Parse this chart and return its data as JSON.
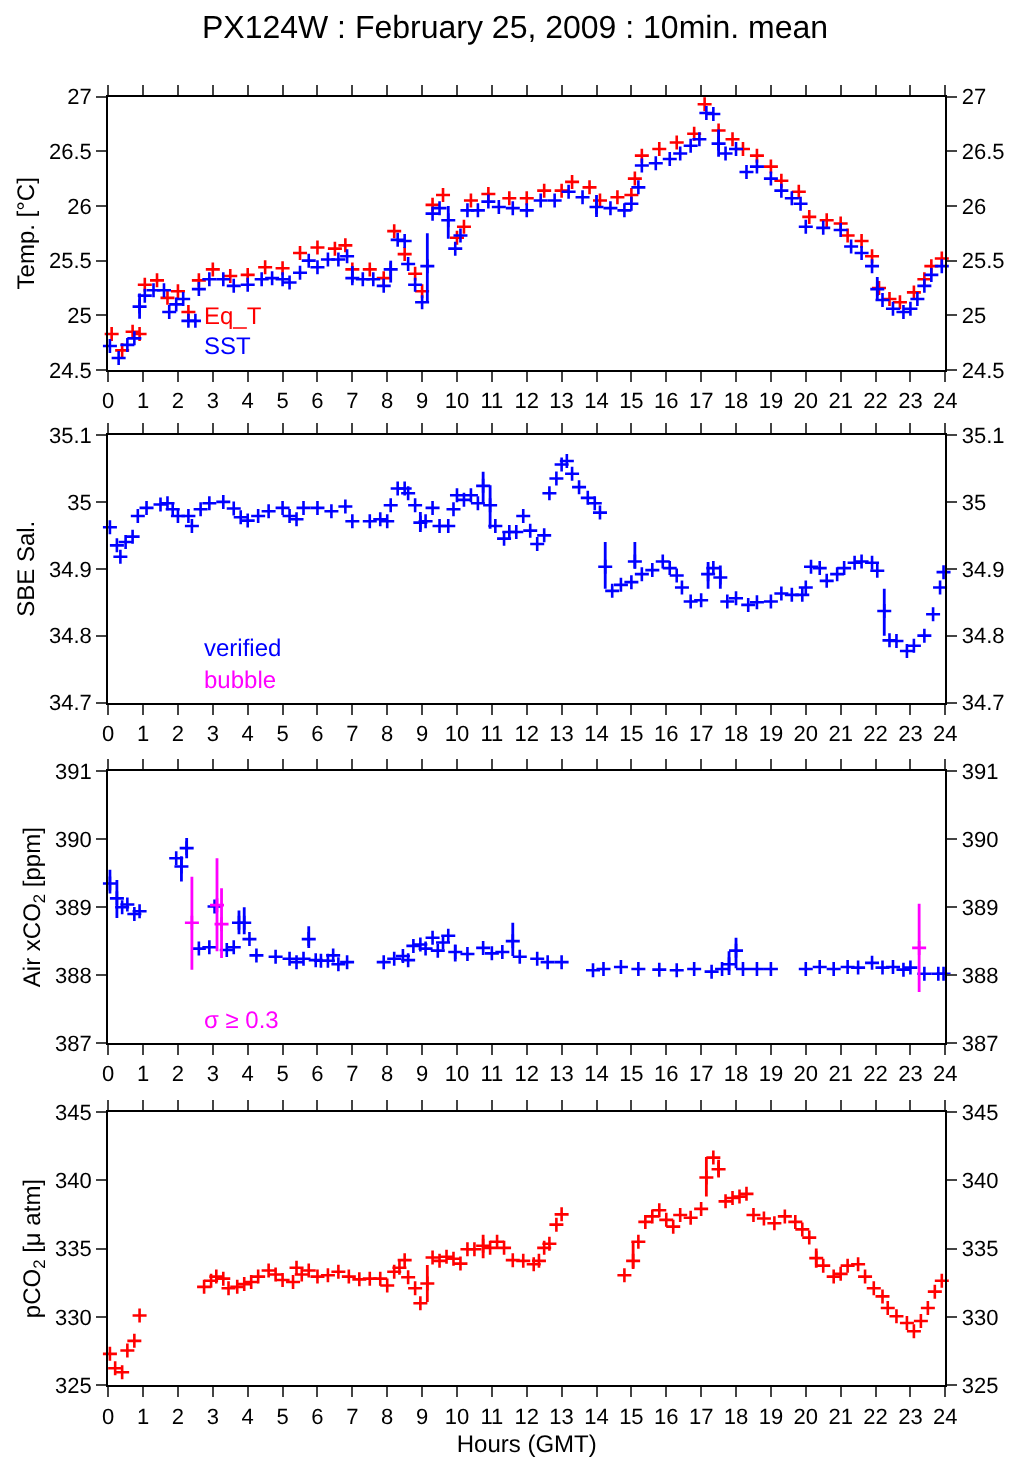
{
  "chart_data": [
    {
      "type": "scatter",
      "title": "PX124W : February 25, 2009 : 10min. mean",
      "ylabel": "Temp. [°C]",
      "marker": "cross",
      "legend": "bottom left",
      "xlim": [
        0,
        24
      ],
      "xticks": [
        0,
        1,
        2,
        3,
        4,
        5,
        6,
        7,
        8,
        9,
        10,
        11,
        12,
        13,
        14,
        15,
        16,
        17,
        18,
        19,
        20,
        21,
        22,
        23,
        24
      ],
      "ylim": [
        24.5,
        27
      ],
      "yticks": [
        24.5,
        25,
        25.5,
        26,
        26.5,
        27
      ],
      "y2lim": [
        24.5,
        27
      ],
      "y2ticks": [
        24.5,
        25,
        25.5,
        26,
        26.5,
        27
      ],
      "series": [
        {
          "name": "Eq_T",
          "color": "#ff0000",
          "x": [
            0.1,
            0.4,
            0.7,
            0.9,
            1.05,
            1.4,
            1.7,
            2.0,
            2.3,
            2.6,
            3.0,
            3.5,
            4.0,
            4.5,
            5.0,
            5.5,
            6.0,
            6.5,
            6.8,
            7.0,
            7.5,
            7.9,
            8.2,
            8.5,
            8.8,
            9.0,
            9.3,
            9.6,
            10.0,
            10.2,
            10.4,
            10.9,
            11.5,
            12.0,
            12.5,
            13.0,
            13.3,
            13.8,
            14.1,
            14.6,
            15.0,
            15.1,
            15.3,
            15.8,
            16.3,
            16.8,
            17.1,
            17.5,
            17.9,
            18.2,
            18.6,
            19.0,
            19.3,
            19.8,
            20.1,
            20.6,
            21.0,
            21.2,
            21.6,
            21.9,
            22.1,
            22.4,
            22.7,
            23.1,
            23.4,
            23.6,
            23.9
          ],
          "values": [
            24.83,
            24.68,
            24.85,
            24.83,
            25.28,
            25.32,
            25.16,
            25.22,
            25.03,
            25.32,
            25.42,
            25.36,
            25.37,
            25.44,
            25.43,
            25.57,
            25.62,
            25.61,
            25.64,
            25.42,
            25.42,
            25.34,
            25.77,
            25.56,
            25.38,
            25.22,
            26.01,
            26.1,
            25.71,
            25.81,
            26.05,
            26.11,
            26.07,
            26.07,
            26.14,
            26.14,
            26.22,
            26.17,
            26.05,
            26.08,
            26.1,
            26.25,
            26.46,
            26.52,
            26.58,
            26.66,
            26.93,
            26.69,
            26.61,
            26.52,
            26.46,
            26.36,
            26.23,
            26.13,
            25.9,
            25.87,
            25.84,
            25.73,
            25.68,
            25.54,
            25.25,
            25.15,
            25.12,
            25.21,
            25.33,
            25.45,
            25.52
          ]
        },
        {
          "name": "SST",
          "color": "#0000ff",
          "x": [
            0.05,
            0.3,
            0.55,
            0.75,
            0.9,
            1.05,
            1.3,
            1.6,
            1.75,
            1.95,
            2.15,
            2.3,
            2.5,
            2.6,
            2.9,
            3.3,
            3.6,
            4.0,
            4.4,
            4.7,
            5.0,
            5.2,
            5.5,
            5.75,
            6.0,
            6.3,
            6.6,
            6.85,
            7.0,
            7.3,
            7.6,
            7.9,
            8.1,
            8.3,
            8.5,
            8.6,
            8.8,
            9.0,
            9.15,
            9.3,
            9.5,
            9.75,
            9.95,
            10.1,
            10.3,
            10.6,
            10.9,
            11.2,
            11.6,
            12.0,
            12.4,
            12.8,
            13.2,
            13.6,
            14.0,
            14.4,
            14.8,
            15.0,
            15.2,
            15.3,
            15.7,
            16.1,
            16.4,
            16.7,
            16.95,
            17.15,
            17.35,
            17.5,
            17.7,
            18.0,
            18.3,
            18.6,
            19.0,
            19.3,
            19.6,
            19.85,
            20.0,
            20.5,
            21.0,
            21.3,
            21.6,
            21.9,
            22.05,
            22.2,
            22.5,
            22.8,
            23.0,
            23.2,
            23.4,
            23.6,
            23.9
          ],
          "values": [
            24.72,
            24.61,
            24.73,
            24.79,
            25.08,
            25.18,
            25.23,
            25.23,
            25.03,
            25.1,
            25.15,
            24.95,
            24.95,
            25.24,
            25.33,
            25.33,
            25.27,
            25.28,
            25.33,
            25.34,
            25.33,
            25.3,
            25.39,
            25.5,
            25.44,
            25.51,
            25.51,
            25.54,
            25.34,
            25.33,
            25.33,
            25.27,
            25.42,
            25.69,
            25.68,
            25.47,
            25.28,
            25.12,
            25.45,
            25.93,
            25.98,
            25.87,
            25.61,
            25.73,
            25.96,
            25.96,
            26.04,
            25.99,
            25.98,
            25.96,
            26.05,
            26.05,
            26.13,
            26.08,
            25.99,
            25.98,
            25.96,
            26.02,
            26.17,
            26.37,
            26.39,
            26.43,
            26.48,
            26.55,
            26.61,
            26.85,
            26.84,
            26.57,
            26.48,
            26.52,
            26.31,
            26.36,
            26.25,
            26.14,
            26.07,
            26.02,
            25.81,
            25.8,
            25.78,
            25.63,
            25.57,
            25.45,
            25.24,
            25.14,
            25.06,
            25.03,
            25.06,
            25.15,
            25.27,
            25.37,
            25.45
          ],
          "errors": [
            null,
            null,
            null,
            null,
            [
              24.97,
              25.2
            ],
            null,
            null,
            null,
            null,
            null,
            null,
            null,
            null,
            null,
            null,
            null,
            null,
            null,
            null,
            null,
            null,
            null,
            null,
            null,
            null,
            null,
            null,
            null,
            [
              25.3,
              25.45
            ],
            null,
            null,
            null,
            [
              25.3,
              25.5
            ],
            null,
            null,
            null,
            null,
            null,
            [
              25.12,
              25.75
            ],
            null,
            null,
            [
              25.7,
              26.0
            ],
            null,
            null,
            null,
            null,
            null,
            null,
            null,
            null,
            null,
            null,
            null,
            null,
            [
              25.9,
              26.1
            ],
            null,
            null,
            null,
            null,
            null,
            null,
            null,
            null,
            null,
            null,
            null,
            null,
            [
              26.45,
              26.7
            ],
            null,
            null,
            null,
            null,
            null,
            null,
            null,
            null,
            null,
            null,
            null,
            null,
            null,
            null,
            [
              25.15,
              25.35
            ],
            null,
            null,
            null,
            null,
            null,
            null,
            null,
            null
          ]
        }
      ]
    },
    {
      "type": "scatter",
      "ylabel": "SBE Sal.",
      "marker": "cross",
      "legend": "bottom left",
      "xlim": [
        0,
        24
      ],
      "xticks": [
        0,
        1,
        2,
        3,
        4,
        5,
        6,
        7,
        8,
        9,
        10,
        11,
        12,
        13,
        14,
        15,
        16,
        17,
        18,
        19,
        20,
        21,
        22,
        23,
        24
      ],
      "ylim": [
        34.7,
        35.1
      ],
      "yticks": [
        34.7,
        34.8,
        34.9,
        35,
        35.1
      ],
      "y2lim": [
        34.7,
        35.1
      ],
      "y2ticks": [
        34.7,
        34.8,
        34.9,
        35,
        35.1
      ],
      "series": [
        {
          "name": "verified",
          "color": "#0000ff",
          "x": [
            0.05,
            0.25,
            0.35,
            0.5,
            0.7,
            0.85,
            1.1,
            1.5,
            1.7,
            1.85,
            2.0,
            2.3,
            2.4,
            2.65,
            2.9,
            3.3,
            3.6,
            3.8,
            4.0,
            4.3,
            4.6,
            5.0,
            5.2,
            5.4,
            5.6,
            6.0,
            6.4,
            6.8,
            7.0,
            7.5,
            7.8,
            8.0,
            8.1,
            8.3,
            8.5,
            8.6,
            8.8,
            8.95,
            9.1,
            9.3,
            9.5,
            9.75,
            9.9,
            10.0,
            10.2,
            10.4,
            10.6,
            10.75,
            10.95,
            11.1,
            11.35,
            11.5,
            11.7,
            11.9,
            12.1,
            12.3,
            12.5,
            12.65,
            12.85,
            13.0,
            13.15,
            13.3,
            13.5,
            13.75,
            13.95,
            14.1,
            14.25,
            14.45,
            14.7,
            15.0,
            15.1,
            15.3,
            15.6,
            15.9,
            16.1,
            16.3,
            16.45,
            16.7,
            17.0,
            17.2,
            17.35,
            17.55,
            17.75,
            18.0,
            18.35,
            18.6,
            19.0,
            19.3,
            19.6,
            19.9,
            20.0,
            20.15,
            20.4,
            20.6,
            20.9,
            21.1,
            21.4,
            21.6,
            21.9,
            22.05,
            22.25,
            22.4,
            22.6,
            22.9,
            23.1,
            23.4,
            23.65,
            23.85,
            23.95
          ],
          "values": [
            34.962,
            34.935,
            34.918,
            34.94,
            34.948,
            34.979,
            34.991,
            34.996,
            34.998,
            34.989,
            34.979,
            34.979,
            34.964,
            34.989,
            34.998,
            35.0,
            34.99,
            34.977,
            34.972,
            34.979,
            34.986,
            34.991,
            34.979,
            34.974,
            34.991,
            34.991,
            34.986,
            34.993,
            34.971,
            34.971,
            34.974,
            34.971,
            34.995,
            35.02,
            35.02,
            35.013,
            34.995,
            34.969,
            34.971,
            34.991,
            34.964,
            34.964,
            34.989,
            35.01,
            35.003,
            35.01,
            34.998,
            35.024,
            34.995,
            34.964,
            34.945,
            34.955,
            34.955,
            34.979,
            34.957,
            34.937,
            34.95,
            35.013,
            35.035,
            35.056,
            35.061,
            35.042,
            35.022,
            35.006,
            34.998,
            34.984,
            34.903,
            34.867,
            34.876,
            34.88,
            34.911,
            34.892,
            34.898,
            34.911,
            34.901,
            34.89,
            34.872,
            34.851,
            34.853,
            34.892,
            34.901,
            34.887,
            34.851,
            34.856,
            34.846,
            34.85,
            34.851,
            34.863,
            34.861,
            34.861,
            34.872,
            34.903,
            34.901,
            34.882,
            34.892,
            34.901,
            34.909,
            34.911,
            34.909,
            34.897,
            34.837,
            34.793,
            34.792,
            34.777,
            34.785,
            34.8,
            34.832,
            34.872,
            34.895
          ],
          "errors": [
            null,
            null,
            null,
            null,
            null,
            null,
            null,
            null,
            null,
            null,
            null,
            null,
            null,
            null,
            null,
            null,
            null,
            null,
            null,
            null,
            null,
            null,
            null,
            null,
            null,
            null,
            null,
            null,
            null,
            null,
            null,
            null,
            null,
            null,
            null,
            null,
            null,
            [
              34.955,
              34.985
            ],
            null,
            null,
            null,
            null,
            null,
            null,
            null,
            null,
            null,
            [
              35.0,
              35.045
            ],
            [
              34.96,
              35.025
            ],
            null,
            null,
            null,
            null,
            null,
            null,
            null,
            null,
            null,
            null,
            null,
            null,
            null,
            null,
            null,
            null,
            null,
            [
              34.87,
              34.94
            ],
            null,
            null,
            null,
            [
              34.9,
              34.94
            ],
            null,
            null,
            null,
            null,
            null,
            null,
            null,
            null,
            [
              34.87,
              34.91
            ],
            null,
            [
              34.87,
              34.905
            ],
            null,
            null,
            null,
            null,
            null,
            null,
            null,
            null,
            null,
            null,
            null,
            null,
            null,
            null,
            null,
            null,
            null,
            null,
            [
              34.8,
              34.87
            ],
            null,
            null,
            null,
            null,
            null,
            null,
            null,
            null
          ]
        },
        {
          "name": "bubble",
          "color": "#ff00ff"
        }
      ]
    },
    {
      "type": "scatter",
      "ylabel": "Air xCO$_{2}$ [ppm]",
      "marker": "cross",
      "legend": "bottom left",
      "xlim": [
        0,
        24
      ],
      "xticks": [
        0,
        1,
        2,
        3,
        4,
        5,
        6,
        7,
        8,
        9,
        10,
        11,
        12,
        13,
        14,
        15,
        16,
        17,
        18,
        19,
        20,
        21,
        22,
        23,
        24
      ],
      "ylim": [
        387,
        391
      ],
      "yticks": [
        387,
        388,
        389,
        390,
        391
      ],
      "y2lim": [
        387,
        391
      ],
      "y2ticks": [
        387,
        388,
        389,
        390,
        391
      ],
      "series": [
        {
          "color": "#0000ff",
          "x": [
            0.05,
            0.25,
            0.4,
            0.55,
            0.75,
            0.9,
            1.4,
            1.95,
            2.1,
            2.25,
            2.6,
            2.9,
            3.05,
            3.4,
            3.6,
            3.75,
            3.9,
            4.05,
            4.25,
            4.8,
            5.2,
            5.4,
            5.6,
            5.75,
            5.95,
            6.1,
            6.3,
            6.45,
            6.6,
            6.85,
            7.4,
            7.9,
            8.2,
            8.45,
            8.6,
            8.75,
            8.95,
            9.1,
            9.3,
            9.45,
            9.6,
            9.75,
            9.95,
            10.3,
            10.75,
            11.0,
            11.3,
            11.6,
            11.8,
            12.3,
            12.6,
            13.0,
            13.4,
            13.9,
            14.2,
            14.7,
            15.2,
            15.8,
            16.3,
            16.8,
            17.3,
            17.6,
            17.8,
            18.0,
            18.2,
            18.6,
            19.0,
            19.5,
            20.0,
            20.4,
            20.8,
            21.2,
            21.5,
            21.9,
            22.2,
            22.5,
            22.8,
            23.0,
            23.4,
            23.8,
            23.95
          ],
          "values": [
            389.35,
            389.13,
            389.0,
            389.04,
            388.9,
            388.94,
            null,
            389.72,
            389.6,
            389.87,
            388.39,
            388.41,
            389.01,
            388.37,
            388.41,
            388.77,
            388.77,
            388.53,
            388.29,
            388.27,
            388.24,
            388.19,
            388.24,
            388.53,
            388.22,
            388.21,
            388.21,
            388.29,
            388.16,
            388.19,
            null,
            388.19,
            388.24,
            388.28,
            388.22,
            388.43,
            388.45,
            388.39,
            388.55,
            388.36,
            388.48,
            388.58,
            388.34,
            388.31,
            388.4,
            388.32,
            388.34,
            388.5,
            388.27,
            388.24,
            388.19,
            388.19,
            null,
            388.07,
            388.09,
            388.12,
            388.09,
            388.08,
            388.07,
            388.09,
            388.05,
            388.09,
            388.16,
            388.36,
            388.09,
            388.09,
            388.09,
            null,
            388.09,
            388.12,
            388.09,
            388.12,
            388.11,
            388.18,
            388.11,
            388.12,
            388.08,
            388.11,
            388.02,
            388.02,
            388.02
          ],
          "errors": [
            [
              389.2,
              389.55
            ],
            [
              388.84,
              389.4
            ],
            null,
            null,
            null,
            null,
            null,
            null,
            [
              389.38,
              389.75
            ],
            [
              389.72,
              390.02
            ],
            null,
            null,
            null,
            null,
            null,
            [
              388.6,
              388.95
            ],
            [
              388.6,
              389.0
            ],
            null,
            null,
            null,
            null,
            null,
            null,
            [
              388.4,
              388.72
            ],
            null,
            null,
            null,
            null,
            null,
            null,
            null,
            null,
            null,
            null,
            null,
            null,
            null,
            null,
            null,
            null,
            null,
            null,
            [
              388.2,
              388.45
            ],
            null,
            null,
            null,
            null,
            [
              388.28,
              388.77
            ],
            null,
            null,
            null,
            null,
            null,
            null,
            null,
            null,
            null,
            null,
            null,
            null,
            null,
            null,
            [
              388.0,
              388.35
            ],
            [
              388.1,
              388.55
            ],
            null,
            null,
            null,
            null,
            null,
            null,
            null,
            null,
            null,
            null,
            null,
            null,
            null,
            null,
            null,
            null,
            null
          ]
        },
        {
          "name": "σ ≥ 0.3",
          "color": "#ff00ff",
          "x": [
            2.4,
            3.12,
            3.25,
            23.25
          ],
          "values": [
            388.77,
            389.03,
            388.75,
            388.4
          ],
          "errors": [
            [
              388.08,
              389.45
            ],
            [
              388.35,
              389.72
            ],
            [
              388.25,
              389.28
            ],
            [
              387.75,
              389.05
            ]
          ]
        }
      ]
    },
    {
      "type": "scatter",
      "ylabel": "pCO$_{2}$ [μ atm]",
      "xlabel": "Hours (GMT)",
      "marker": "cross",
      "xlim": [
        0,
        24
      ],
      "xticks": [
        0,
        1,
        2,
        3,
        4,
        5,
        6,
        7,
        8,
        9,
        10,
        11,
        12,
        13,
        14,
        15,
        16,
        17,
        18,
        19,
        20,
        21,
        22,
        23,
        24
      ],
      "ylim": [
        325,
        345
      ],
      "yticks": [
        325,
        330,
        335,
        340,
        345
      ],
      "y2lim": [
        325,
        345
      ],
      "y2ticks": [
        325,
        330,
        335,
        340,
        345
      ],
      "series": [
        {
          "color": "#ff0000",
          "x": [
            0.05,
            0.2,
            0.4,
            0.55,
            0.75,
            0.9,
            1.8,
            2.75,
            2.95,
            3.1,
            3.3,
            3.45,
            3.7,
            3.9,
            4.1,
            4.3,
            4.6,
            4.8,
            5.0,
            5.3,
            5.4,
            5.55,
            5.75,
            6.0,
            6.3,
            6.6,
            6.9,
            7.2,
            7.5,
            7.8,
            8.0,
            8.2,
            8.35,
            8.5,
            8.6,
            8.8,
            8.95,
            9.15,
            9.3,
            9.5,
            9.7,
            9.9,
            10.1,
            10.3,
            10.5,
            10.75,
            10.95,
            11.15,
            11.35,
            11.6,
            11.9,
            12.2,
            12.35,
            12.5,
            12.65,
            12.85,
            13.0,
            14.0,
            14.8,
            15.05,
            15.2,
            15.4,
            15.6,
            15.8,
            16.0,
            16.2,
            16.4,
            16.7,
            17.0,
            17.15,
            17.35,
            17.5,
            17.7,
            17.9,
            18.1,
            18.3,
            18.5,
            18.8,
            19.1,
            19.4,
            19.7,
            19.9,
            20.1,
            20.3,
            20.5,
            20.8,
            21.0,
            21.2,
            21.5,
            21.7,
            21.95,
            22.2,
            22.35,
            22.6,
            22.9,
            23.1,
            23.3,
            23.5,
            23.7,
            23.9
          ],
          "values": [
            327.3,
            326.25,
            325.95,
            327.55,
            328.25,
            330.1,
            null,
            332.2,
            332.65,
            332.95,
            332.8,
            332.1,
            332.2,
            332.4,
            332.55,
            332.95,
            333.4,
            333.1,
            332.7,
            332.55,
            333.6,
            333.1,
            333.4,
            332.95,
            333.05,
            333.3,
            332.95,
            332.75,
            332.8,
            332.8,
            332.3,
            333.3,
            333.6,
            334.15,
            332.9,
            332.1,
            331.0,
            332.45,
            334.35,
            334.1,
            334.4,
            334.25,
            333.9,
            334.95,
            334.95,
            335.2,
            335.05,
            335.5,
            335.05,
            334.15,
            334.1,
            333.85,
            334.1,
            335.05,
            335.35,
            336.75,
            337.5,
            null,
            333.05,
            334.1,
            335.5,
            336.95,
            337.35,
            337.8,
            337.1,
            336.6,
            337.45,
            337.25,
            337.9,
            340.2,
            341.65,
            340.8,
            338.45,
            338.7,
            338.8,
            339.0,
            337.45,
            337.2,
            336.85,
            337.35,
            336.95,
            336.4,
            335.8,
            334.3,
            333.75,
            332.95,
            333.15,
            333.75,
            333.85,
            332.95,
            332.1,
            331.5,
            330.65,
            330.05,
            329.55,
            328.95,
            329.7,
            330.65,
            331.85,
            332.65
          ],
          "errors": [
            null,
            null,
            null,
            null,
            null,
            null,
            null,
            null,
            null,
            null,
            null,
            null,
            null,
            null,
            null,
            null,
            null,
            null,
            null,
            null,
            null,
            null,
            null,
            null,
            null,
            null,
            null,
            null,
            null,
            null,
            null,
            null,
            null,
            null,
            null,
            null,
            null,
            [
              331.1,
              333.8
            ],
            null,
            null,
            null,
            null,
            null,
            null,
            null,
            [
              334.3,
              336.0
            ],
            null,
            null,
            null,
            null,
            null,
            null,
            null,
            null,
            null,
            null,
            null,
            null,
            null,
            [
              333.5,
              335.5
            ],
            null,
            null,
            null,
            null,
            null,
            null,
            null,
            null,
            null,
            [
              338.8,
              341.7
            ],
            null,
            [
              340.2,
              341.5
            ],
            null,
            null,
            null,
            null,
            null,
            null,
            null,
            null,
            null,
            null,
            null,
            [
              333.6,
              335.0
            ],
            null,
            null,
            null,
            null,
            null,
            null,
            null,
            null,
            null,
            null,
            null,
            null,
            null,
            null,
            null,
            null
          ]
        }
      ]
    }
  ]
}
